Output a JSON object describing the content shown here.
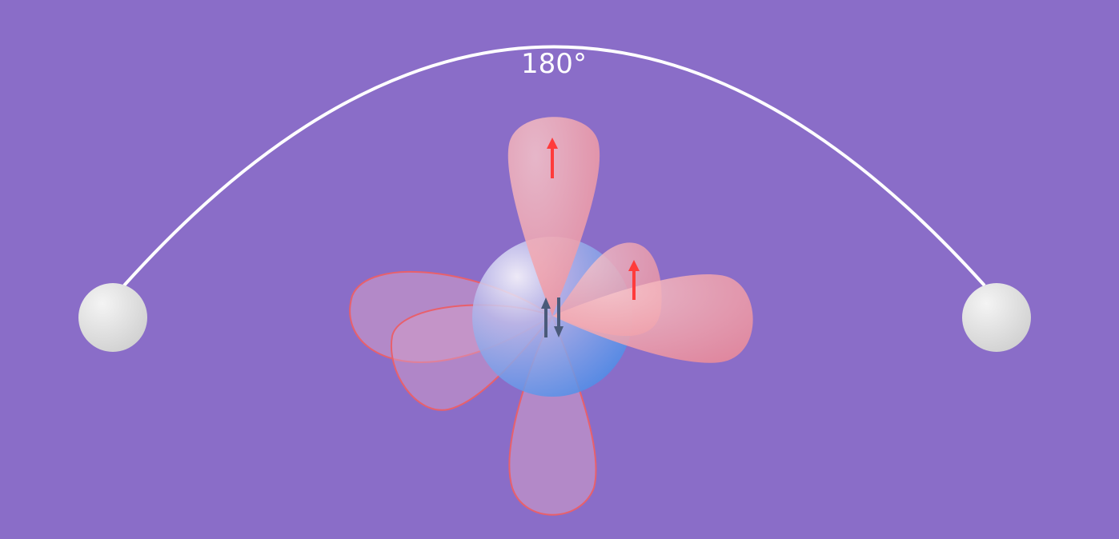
{
  "diagram": {
    "angle_label": "180°",
    "colors": {
      "background": "#8a6dc8",
      "arc": "#ffffff",
      "ligand": "#e6e6e6",
      "lobe_filled": "#f39aa0",
      "lobe_outline": "#e8606c",
      "electron_up": "#ff3b3b",
      "electron_pair": "#4a5a7a",
      "central_atom_light": "#ffffff",
      "central_atom_dark": "#4c8ee8"
    },
    "lobes": {
      "filled": [
        "top",
        "right",
        "upper-right-back"
      ],
      "empty": [
        "bottom",
        "left",
        "lower-left"
      ]
    },
    "electrons": {
      "single_electron_lobes": 2,
      "lone_pair_count": 1
    }
  }
}
